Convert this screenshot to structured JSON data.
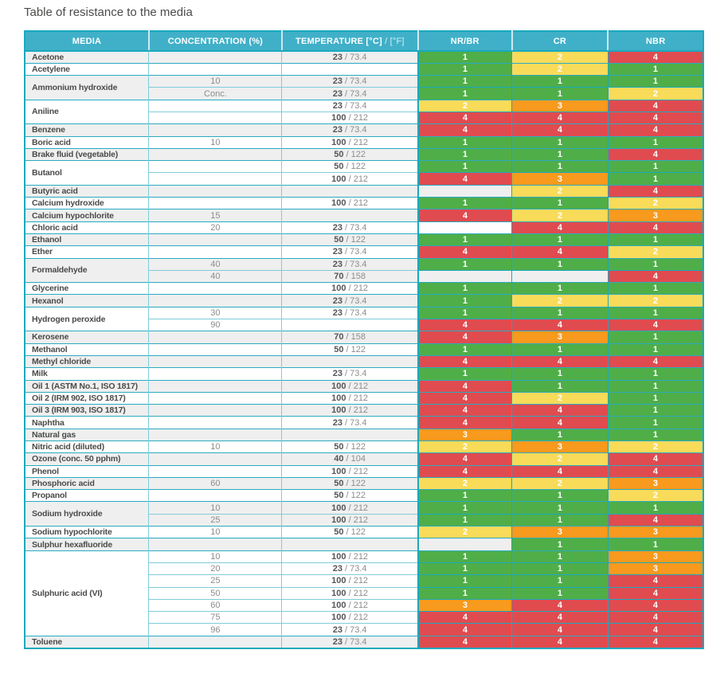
{
  "title": "Table of resistance to the media",
  "colors": {
    "header_bg": "#40b0c8",
    "border_strong": "#1aa9be",
    "border_light": "#7fccda",
    "row_shade_bg": "#efefef",
    "rating_colors": {
      "1": "#4fae48",
      "2": "#f9db5a",
      "3": "#f79a1d",
      "4": "#e04b50"
    }
  },
  "table": {
    "headers": {
      "media": "MEDIA",
      "concentration": "CONCENTRATION (%)",
      "temperature_bold": "TEMPERATURE [°C]",
      "temperature_light": " / [°F]",
      "nr_br": "NR/BR",
      "cr": "CR",
      "nbr": "NBR"
    },
    "temp_separator": " / ",
    "groups": [
      {
        "media": "Acetone",
        "rows": [
          {
            "conc": "",
            "temp_c": "23",
            "temp_f": "73.4",
            "ratings": [
              1,
              2,
              4
            ]
          }
        ]
      },
      {
        "media": "Acetylene",
        "rows": [
          {
            "conc": "",
            "temp_c": "",
            "temp_f": "",
            "ratings": [
              1,
              2,
              1
            ]
          }
        ]
      },
      {
        "media": "Ammonium hydroxide",
        "rows": [
          {
            "conc": "10",
            "temp_c": "23",
            "temp_f": "73.4",
            "ratings": [
              1,
              1,
              1
            ]
          },
          {
            "conc": "Conc.",
            "temp_c": "23",
            "temp_f": "73.4",
            "ratings": [
              1,
              1,
              2
            ]
          }
        ]
      },
      {
        "media": "Aniline",
        "rows": [
          {
            "conc": "",
            "temp_c": "23",
            "temp_f": "73.4",
            "ratings": [
              2,
              3,
              4
            ]
          },
          {
            "conc": "",
            "temp_c": "100",
            "temp_f": "212",
            "ratings": [
              4,
              4,
              4
            ]
          }
        ]
      },
      {
        "media": "Benzene",
        "rows": [
          {
            "conc": "",
            "temp_c": "23",
            "temp_f": "73.4",
            "ratings": [
              4,
              4,
              4
            ]
          }
        ]
      },
      {
        "media": "Boric acid",
        "rows": [
          {
            "conc": "10",
            "temp_c": "100",
            "temp_f": "212",
            "ratings": [
              1,
              1,
              1
            ]
          }
        ]
      },
      {
        "media": "Brake fluid (vegetable)",
        "rows": [
          {
            "conc": "",
            "temp_c": "50",
            "temp_f": "122",
            "ratings": [
              1,
              1,
              4
            ]
          }
        ]
      },
      {
        "media": "Butanol",
        "rows": [
          {
            "conc": "",
            "temp_c": "50",
            "temp_f": "122",
            "ratings": [
              1,
              1,
              1
            ]
          },
          {
            "conc": "",
            "temp_c": "100",
            "temp_f": "212",
            "ratings": [
              4,
              3,
              1
            ]
          }
        ]
      },
      {
        "media": "Butyric acid",
        "rows": [
          {
            "conc": "",
            "temp_c": "",
            "temp_f": "",
            "ratings": [
              null,
              2,
              4
            ]
          }
        ]
      },
      {
        "media": "Calcium hydroxide",
        "rows": [
          {
            "conc": "",
            "temp_c": "100",
            "temp_f": "212",
            "ratings": [
              1,
              1,
              2
            ]
          }
        ]
      },
      {
        "media": "Calcium hypochlorite",
        "rows": [
          {
            "conc": "15",
            "temp_c": "",
            "temp_f": "",
            "ratings": [
              4,
              2,
              3
            ]
          }
        ]
      },
      {
        "media": "Chloric acid",
        "rows": [
          {
            "conc": "20",
            "temp_c": "23",
            "temp_f": "73.4",
            "ratings": [
              null,
              4,
              4
            ]
          }
        ]
      },
      {
        "media": "Ethanol",
        "rows": [
          {
            "conc": "",
            "temp_c": "50",
            "temp_f": "122",
            "ratings": [
              1,
              1,
              1
            ]
          }
        ]
      },
      {
        "media": "Ether",
        "rows": [
          {
            "conc": "",
            "temp_c": "23",
            "temp_f": "73.4",
            "ratings": [
              4,
              4,
              2
            ]
          }
        ]
      },
      {
        "media": "Formaldehyde",
        "rows": [
          {
            "conc": "40",
            "temp_c": "23",
            "temp_f": "73.4",
            "ratings": [
              1,
              1,
              1
            ]
          },
          {
            "conc": "40",
            "temp_c": "70",
            "temp_f": "158",
            "ratings": [
              null,
              null,
              4
            ]
          }
        ]
      },
      {
        "media": "Glycerine",
        "rows": [
          {
            "conc": "",
            "temp_c": "100",
            "temp_f": "212",
            "ratings": [
              1,
              1,
              1
            ]
          }
        ]
      },
      {
        "media": "Hexanol",
        "rows": [
          {
            "conc": "",
            "temp_c": "23",
            "temp_f": "73.4",
            "ratings": [
              1,
              2,
              2
            ]
          }
        ]
      },
      {
        "media": "Hydrogen peroxide",
        "rows": [
          {
            "conc": "30",
            "temp_c": "23",
            "temp_f": "73.4",
            "ratings": [
              1,
              1,
              1
            ]
          },
          {
            "conc": "90",
            "temp_c": "",
            "temp_f": "",
            "ratings": [
              4,
              4,
              4
            ]
          }
        ]
      },
      {
        "media": "Kerosene",
        "rows": [
          {
            "conc": "",
            "temp_c": "70",
            "temp_f": "158",
            "ratings": [
              4,
              3,
              1
            ]
          }
        ]
      },
      {
        "media": "Methanol",
        "rows": [
          {
            "conc": "",
            "temp_c": "50",
            "temp_f": "122",
            "ratings": [
              1,
              1,
              1
            ]
          }
        ]
      },
      {
        "media": "Methyl chloride",
        "rows": [
          {
            "conc": "",
            "temp_c": "",
            "temp_f": "",
            "ratings": [
              4,
              4,
              4
            ]
          }
        ]
      },
      {
        "media": "Milk",
        "rows": [
          {
            "conc": "",
            "temp_c": "23",
            "temp_f": "73.4",
            "ratings": [
              1,
              1,
              1
            ]
          }
        ]
      },
      {
        "media": "Oil 1 (ASTM No.1, ISO 1817)",
        "rows": [
          {
            "conc": "",
            "temp_c": "100",
            "temp_f": "212",
            "ratings": [
              4,
              1,
              1
            ]
          }
        ]
      },
      {
        "media": "Oil 2 (IRM 902, ISO 1817)",
        "rows": [
          {
            "conc": "",
            "temp_c": "100",
            "temp_f": "212",
            "ratings": [
              4,
              2,
              1
            ]
          }
        ]
      },
      {
        "media": "Oil 3 (IRM 903, ISO 1817)",
        "rows": [
          {
            "conc": "",
            "temp_c": "100",
            "temp_f": "212",
            "ratings": [
              4,
              4,
              1
            ]
          }
        ]
      },
      {
        "media": "Naphtha",
        "rows": [
          {
            "conc": "",
            "temp_c": "23",
            "temp_f": "73.4",
            "ratings": [
              4,
              4,
              1
            ]
          }
        ]
      },
      {
        "media": "Natural gas",
        "rows": [
          {
            "conc": "",
            "temp_c": "",
            "temp_f": "",
            "ratings": [
              3,
              1,
              1
            ]
          }
        ]
      },
      {
        "media": "Nitric acid (diluted)",
        "rows": [
          {
            "conc": "10",
            "temp_c": "50",
            "temp_f": "122",
            "ratings": [
              2,
              3,
              2
            ]
          }
        ]
      },
      {
        "media": "Ozone (conc. 50 pphm)",
        "rows": [
          {
            "conc": "",
            "temp_c": "40",
            "temp_f": "104",
            "ratings": [
              4,
              2,
              4
            ]
          }
        ]
      },
      {
        "media": "Phenol",
        "rows": [
          {
            "conc": "",
            "temp_c": "100",
            "temp_f": "212",
            "ratings": [
              4,
              4,
              4
            ]
          }
        ]
      },
      {
        "media": "Phosphoric acid",
        "rows": [
          {
            "conc": "60",
            "temp_c": "50",
            "temp_f": "122",
            "ratings": [
              2,
              2,
              3
            ]
          }
        ]
      },
      {
        "media": "Propanol",
        "rows": [
          {
            "conc": "",
            "temp_c": "50",
            "temp_f": "122",
            "ratings": [
              1,
              1,
              2
            ]
          }
        ]
      },
      {
        "media": "Sodium hydroxide",
        "rows": [
          {
            "conc": "10",
            "temp_c": "100",
            "temp_f": "212",
            "ratings": [
              1,
              1,
              1
            ]
          },
          {
            "conc": "25",
            "temp_c": "100",
            "temp_f": "212",
            "ratings": [
              1,
              1,
              4
            ]
          }
        ]
      },
      {
        "media": "Sodium hypochlorite",
        "rows": [
          {
            "conc": "10",
            "temp_c": "50",
            "temp_f": "122",
            "ratings": [
              2,
              3,
              3
            ]
          }
        ]
      },
      {
        "media": "Sulphur hexafluoride",
        "rows": [
          {
            "conc": "",
            "temp_c": "",
            "temp_f": "",
            "ratings": [
              null,
              1,
              1
            ]
          }
        ]
      },
      {
        "media": "Sulphuric acid (VI)",
        "rows": [
          {
            "conc": "10",
            "temp_c": "100",
            "temp_f": "212",
            "ratings": [
              1,
              1,
              3
            ]
          },
          {
            "conc": "20",
            "temp_c": "23",
            "temp_f": "73.4",
            "ratings": [
              1,
              1,
              3
            ]
          },
          {
            "conc": "25",
            "temp_c": "100",
            "temp_f": "212",
            "ratings": [
              1,
              1,
              4
            ]
          },
          {
            "conc": "50",
            "temp_c": "100",
            "temp_f": "212",
            "ratings": [
              1,
              1,
              4
            ]
          },
          {
            "conc": "60",
            "temp_c": "100",
            "temp_f": "212",
            "ratings": [
              3,
              4,
              4
            ]
          },
          {
            "conc": "75",
            "temp_c": "100",
            "temp_f": "212",
            "ratings": [
              4,
              4,
              4
            ]
          },
          {
            "conc": "96",
            "temp_c": "23",
            "temp_f": "73.4",
            "ratings": [
              4,
              4,
              4
            ]
          }
        ]
      },
      {
        "media": "Toluene",
        "rows": [
          {
            "conc": "",
            "temp_c": "23",
            "temp_f": "73.4",
            "ratings": [
              4,
              4,
              4
            ]
          }
        ]
      }
    ]
  }
}
